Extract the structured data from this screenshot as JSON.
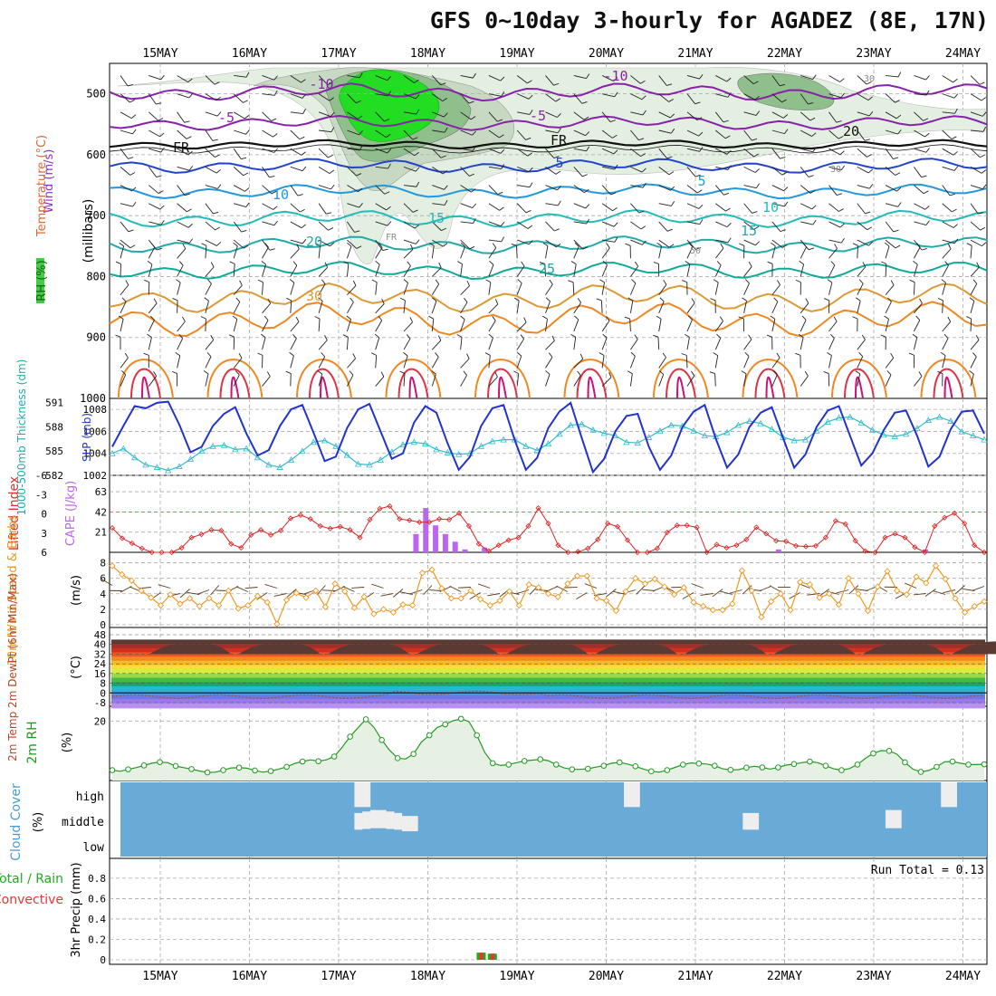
{
  "title": "GFS 0~10day 3-hourly for AGADEZ (8E, 17N)",
  "colors": {
    "frame": "#000000",
    "grid": "#aaaaaa",
    "rh_green1": "#e3efe0",
    "rh_green2": "#c7d8c3",
    "rh_green3": "#8fbf8a",
    "rh_green4": "#22dd22",
    "slp": "#2233cc",
    "thickness": "#33bbcc",
    "lifted_index": "#dd2222",
    "cape": "#bb66ee",
    "wind10": "#ee9922",
    "cloud": "#6aaad6",
    "rh2m": "#229922",
    "precip_total": "#22aa22",
    "precip_conv": "#ee3333"
  },
  "x_axis": {
    "dates": [
      "15MAY",
      "16MAY",
      "17MAY",
      "18MAY",
      "19MAY",
      "20MAY",
      "21MAY",
      "22MAY",
      "23MAY",
      "24MAY"
    ]
  },
  "panels": {
    "upper_air": {
      "ylabel_wind": "Wind (m/s)",
      "ylabel_temp": "Temperature (°C)",
      "ylabel_units": "(millibars)",
      "ylabel_rh": "RH (%)",
      "pressure_ticks": [
        "500",
        "600",
        "700",
        "800",
        "900",
        "1000"
      ],
      "contour_labels": [
        "-10",
        "-5",
        "FR",
        "5",
        "10",
        "15",
        "20",
        "25",
        "30",
        "-10",
        "-5",
        "FR",
        "5",
        "10",
        "15",
        "20",
        "FR",
        "30",
        "30",
        "50",
        "10"
      ]
    },
    "slp_thickness": {
      "ylabel_thk": "1000-500mb Thickness (dm)",
      "ylabel_slp": "SLP (mb)",
      "left_ticks": [
        "591",
        "588",
        "585",
        "582"
      ],
      "right_ticks": [
        "1008",
        "1006",
        "1004",
        "1002"
      ]
    },
    "instability": {
      "ylabel_li": "Lifted Index",
      "ylabel_cape": "CAPE (J/kg)",
      "left_ticks": [
        "-6",
        "-3",
        "0",
        "3",
        "6"
      ],
      "right_ticks": [
        "63",
        "42",
        "21"
      ]
    },
    "wind10m": {
      "ylabel": "10m Wind Speed & Barbs",
      "ylabel_units": "(m/s)",
      "ticks": [
        "8",
        "6",
        "4",
        "2",
        "0"
      ]
    },
    "temp2m": {
      "ylabel": "2m Temp 2m DewPt (6hr Min/Max)",
      "ylabel_units": "(°C)",
      "ticks": [
        "48",
        "40",
        "32",
        "24",
        "16",
        "8",
        "0",
        "-8"
      ]
    },
    "rh2m": {
      "ylabel": "2m RH",
      "ylabel_units": "(%)",
      "ticks": [
        "20"
      ]
    },
    "cloud": {
      "ylabel": "Cloud Cover",
      "ylabel_units": "(%)",
      "levels": [
        "high",
        "middle",
        "low"
      ]
    },
    "precip": {
      "ylabel_a": "Total / Rain",
      "ylabel_b": "Convective",
      "ylabel_units": "3hr Precip (mm)",
      "ticks": [
        "0.8",
        "0.6",
        "0.4",
        "0.2",
        "0"
      ],
      "run_total": "Run Total = 0.13"
    }
  },
  "chart_data": [
    {
      "type": "line",
      "title": "SLP (mb)",
      "x_unit": "3-hourly steps from 14MAY 12Z",
      "ylim": [
        1002,
        1009
      ],
      "series": [
        {
          "name": "SLP (mb)",
          "values": [
            1004.6,
            1006.5,
            1008.3,
            1008.1,
            1008.6,
            1008.7,
            1006.6,
            1004.1,
            1004.6,
            1006.5,
            1007.6,
            1008.2,
            1005.8,
            1003.8,
            1004.3,
            1006.5,
            1008.0,
            1008.4,
            1005.9,
            1003.3,
            1003.7,
            1006.3,
            1008.0,
            1008.5,
            1006.0,
            1003.5,
            1004.0,
            1006.8,
            1008.3,
            1007.7,
            1004.9,
            1002.5,
            1003.7,
            1006.5,
            1008.1,
            1008.4,
            1005.2,
            1002.5,
            1003.6,
            1006.3,
            1007.8,
            1008.6,
            1005.4,
            1002.3,
            1003.5,
            1006.0,
            1007.4,
            1007.6,
            1004.6,
            1002.5,
            1003.8,
            1006.4,
            1007.8,
            1008.4,
            1005.3,
            1002.7,
            1003.9,
            1006.4,
            1007.7,
            1008.2,
            1005.4,
            1002.7,
            1003.9,
            1006.4,
            1007.9,
            1008.3,
            1005.6,
            1002.9,
            1004.0,
            1006.1,
            1007.7,
            1007.9,
            1005.6,
            1002.8,
            1003.7,
            1006.2,
            1007.8,
            1007.9,
            1005.8
          ]
        }
      ]
    },
    {
      "type": "line",
      "title": "1000-500mb Thickness (dm)",
      "ylim": [
        582,
        591.5
      ],
      "series": [
        {
          "name": "1000-500mb Thickness (dm)",
          "values": [
            584.7,
            585.3,
            584.2,
            583.3,
            583.0,
            582.6,
            583.1,
            584.0,
            585.0,
            585.6,
            585.7,
            585.2,
            585.3,
            584.2,
            583.3,
            583.0,
            583.9,
            585.0,
            586.1,
            586.3,
            585.6,
            584.5,
            583.4,
            583.3,
            583.9,
            584.9,
            585.8,
            586.1,
            585.9,
            585.2,
            584.8,
            584.6,
            584.7,
            585.6,
            586.2,
            586.4,
            586.4,
            585.6,
            585.1,
            585.9,
            587.1,
            588.2,
            588.3,
            587.6,
            587.2,
            586.9,
            586.1,
            586.0,
            586.7,
            587.5,
            588.2,
            588.1,
            587.5,
            586.9,
            586.8,
            587.3,
            588.2,
            588.7,
            588.4,
            587.7,
            586.7,
            586.3,
            586.4,
            587.5,
            588.6,
            589.1,
            589.2,
            588.5,
            587.6,
            587.0,
            586.8,
            587.1,
            587.8,
            588.8,
            589.2,
            588.7,
            587.4,
            586.9,
            586.4
          ]
        }
      ]
    },
    {
      "type": "line",
      "title": "Lifted Index",
      "ylim": [
        6,
        -6
      ],
      "series": [
        {
          "name": "Lifted Index",
          "values": [
            2.2,
            3.8,
            4.6,
            5.4,
            6.2,
            6.4,
            6.1,
            5.3,
            3.7,
            3.2,
            2.5,
            2.6,
            4.7,
            5.3,
            3.3,
            2.5,
            3.3,
            2.6,
            0.7,
            0.2,
            0.8,
            1.9,
            2.3,
            2.0,
            2.5,
            3.7,
            0.9,
            -0.8,
            -1.2,
            0.8,
            1.0,
            1.3,
            1.3,
            0.8,
            0.9,
            -0.1,
            1.9,
            4.7,
            5.8,
            4.9,
            4.1,
            3.7,
            1.9,
            -0.9,
            1.5,
            4.9,
            6.2,
            5.9,
            5.4,
            4.0,
            1.5,
            2.0,
            4.1,
            6.3,
            6.1,
            5.4,
            2.9,
            1.8,
            1.8,
            2.1,
            6.1,
            4.8,
            5.3,
            4.9,
            4.0,
            2.1,
            3.1,
            4.2,
            4.3,
            5.0,
            5.1,
            5.0,
            3.7,
            1.1,
            1.6,
            4.2,
            5.8,
            6.0,
            3.7,
            3.1,
            3.7,
            5.2,
            6.2,
            1.9,
            0.6,
            -0.1,
            1.5,
            4.9,
            6.0
          ]
        }
      ]
    },
    {
      "type": "bar",
      "title": "CAPE (J/kg)",
      "ylim": [
        0,
        80
      ],
      "series": [
        {
          "name": "CAPE (J/kg)",
          "values": [
            0,
            0,
            0,
            0,
            0,
            0,
            0,
            0,
            0,
            0,
            0,
            0,
            0,
            0,
            0,
            0,
            0,
            0,
            0,
            0,
            0,
            0,
            0,
            0,
            0,
            0,
            0,
            0,
            0,
            0,
            0,
            19,
            46,
            28,
            19,
            11,
            3,
            0,
            5,
            0,
            0,
            0,
            0,
            0,
            0,
            0,
            0,
            0,
            0,
            0,
            0,
            0,
            0,
            0,
            0,
            0,
            0,
            0,
            0,
            0,
            0,
            0,
            0,
            0,
            0,
            0,
            0,
            0,
            3,
            0,
            0,
            0,
            0,
            0,
            0,
            0,
            0,
            0,
            0,
            0,
            0,
            0,
            0,
            3,
            0,
            0,
            0,
            0,
            0,
            0
          ]
        }
      ]
    },
    {
      "type": "line",
      "title": "10m Wind Speed (m/s)",
      "ylim": [
        0,
        9
      ],
      "series": [
        {
          "name": "10m Wind Speed (m/s)",
          "values": [
            7.6,
            6.5,
            5.7,
            4.4,
            3.5,
            2.5,
            3.9,
            2.7,
            3.4,
            2.4,
            3.4,
            2.5,
            4.4,
            2.1,
            2.5,
            3.7,
            2.9,
            0.1,
            3.2,
            4.1,
            3.5,
            4.4,
            2.3,
            5.3,
            4.3,
            2.2,
            3.6,
            1.4,
            2.0,
            1.6,
            2.6,
            2.5,
            6.7,
            7.1,
            4.7,
            3.4,
            3.4,
            4.4,
            3.3,
            2.5,
            3.1,
            4.3,
            2.5,
            5.2,
            4.8,
            4.0,
            3.6,
            5.3,
            6.3,
            6.3,
            3.4,
            3.1,
            1.8,
            4.3,
            6.0,
            5.3,
            5.9,
            4.9,
            3.9,
            4.8,
            2.9,
            2.4,
            1.9,
            1.9,
            2.7,
            7.0,
            4.4,
            1.0,
            3.0,
            4.0,
            1.9,
            5.5,
            5.2,
            3.5,
            4.0,
            2.6,
            6.0,
            4.0,
            1.8,
            4.9,
            6.9,
            4.4,
            3.9,
            6.2,
            5.4,
            7.6,
            5.9,
            3.4,
            1.6,
            2.4,
            3.0
          ]
        }
      ]
    },
    {
      "type": "area",
      "title": "2m RH (%)",
      "ylim": [
        0,
        24
      ],
      "series": [
        {
          "name": "2m RH (%)",
          "values": [
            2.4,
            2.0,
            2.7,
            3.3,
            4.1,
            4.9,
            5.3,
            5.1,
            3.9,
            3.3,
            2.8,
            2.1,
            1.6,
            1.7,
            2.4,
            3.2,
            3.3,
            3.1,
            2.3,
            1.7,
            2.1,
            2.8,
            3.6,
            4.8,
            5.5,
            6.1,
            5.6,
            6.1,
            7.3,
            10.6,
            14.4,
            17.6,
            20.6,
            17.8,
            13.2,
            9.5,
            6.7,
            6.4,
            8.2,
            12.5,
            14.9,
            17.7,
            18.8,
            20.1,
            20.8,
            19.8,
            14.9,
            8.7,
            4.9,
            4.1,
            4.4,
            5.1,
            5.7,
            6.0,
            6.3,
            5.8,
            4.4,
            3.2,
            2.7,
            2.7,
            2.9,
            3.5,
            4.0,
            4.9,
            5.2,
            4.6,
            3.8,
            2.8,
            2.0,
            1.7,
            2.4,
            3.4,
            4.4,
            5.0,
            4.8,
            4.6,
            4.0,
            2.9,
            2.5,
            2.6,
            3.3,
            3.8,
            3.4,
            2.8,
            3.4,
            4.2,
            4.6,
            5.1,
            5.5,
            5.1,
            4.0,
            2.9,
            2.4,
            3.0,
            4.4,
            6.6,
            8.4,
            9.4,
            9.3,
            8.1,
            5.2,
            2.8,
            1.8,
            2.3,
            3.6,
            5.4,
            5.5,
            4.9,
            4.4,
            4.4,
            4.5
          ]
        }
      ]
    },
    {
      "type": "heatmap",
      "title": "Cloud Cover (%)",
      "y_categories": [
        "high",
        "middle",
        "low"
      ],
      "values_high": [
        0,
        0,
        0,
        0,
        0,
        0,
        0,
        0,
        0,
        0,
        0,
        0,
        0,
        0,
        0,
        0,
        0,
        0,
        0,
        0,
        0,
        0,
        0,
        0,
        0,
        0,
        0,
        0,
        0,
        0,
        0,
        100,
        100,
        0,
        0,
        0,
        0,
        0,
        0,
        0,
        0,
        0,
        0,
        0,
        0,
        0,
        0,
        0,
        0,
        0,
        0,
        0,
        0,
        0,
        0,
        0,
        0,
        0,
        0,
        0,
        0,
        0,
        0,
        0,
        0,
        100,
        100,
        0,
        0,
        0,
        0,
        0,
        0,
        0,
        0,
        0,
        0,
        0,
        0,
        0,
        0,
        0,
        0,
        0,
        0,
        0,
        0,
        0,
        0,
        0,
        0,
        0,
        0,
        0,
        0,
        0,
        0,
        0,
        0,
        0,
        0,
        0,
        0,
        0,
        0,
        100,
        100,
        0,
        0,
        0,
        0
      ],
      "values_middle": [
        0,
        0,
        0,
        0,
        0,
        0,
        0,
        0,
        0,
        0,
        0,
        0,
        0,
        0,
        0,
        0,
        0,
        0,
        0,
        0,
        0,
        0,
        0,
        0,
        0,
        0,
        0,
        0,
        0,
        0,
        0,
        60,
        70,
        80,
        80,
        70,
        60,
        40,
        40,
        0,
        0,
        0,
        0,
        0,
        0,
        0,
        0,
        0,
        0,
        0,
        0,
        0,
        0,
        0,
        0,
        0,
        0,
        0,
        0,
        0,
        0,
        0,
        0,
        0,
        0,
        0,
        0,
        0,
        0,
        0,
        0,
        0,
        0,
        0,
        0,
        0,
        0,
        0,
        0,
        0,
        60,
        60,
        0,
        0,
        0,
        0,
        0,
        0,
        0,
        0,
        0,
        0,
        0,
        0,
        0,
        0,
        0,
        0,
        80,
        80,
        0,
        0,
        0,
        0,
        0,
        0,
        0,
        0,
        0,
        0,
        0
      ]
    },
    {
      "type": "bar",
      "title": "3hr Precip (mm)",
      "ylim": [
        0,
        0.95
      ],
      "series": [
        {
          "name": "Total / Rain",
          "values": [
            0,
            0,
            0,
            0,
            0,
            0,
            0,
            0,
            0,
            0,
            0,
            0,
            0,
            0,
            0,
            0,
            0,
            0,
            0,
            0,
            0,
            0,
            0,
            0,
            0,
            0,
            0,
            0,
            0,
            0,
            0,
            0,
            0,
            0.07,
            0.06,
            0,
            0,
            0,
            0,
            0,
            0,
            0,
            0,
            0,
            0,
            0,
            0,
            0,
            0,
            0,
            0,
            0,
            0,
            0,
            0,
            0,
            0,
            0,
            0,
            0,
            0,
            0,
            0,
            0,
            0,
            0,
            0,
            0,
            0,
            0,
            0,
            0,
            0,
            0,
            0,
            0,
            0,
            0,
            0
          ]
        },
        {
          "name": "Convective",
          "values": [
            0,
            0,
            0,
            0,
            0,
            0,
            0,
            0,
            0,
            0,
            0,
            0,
            0,
            0,
            0,
            0,
            0,
            0,
            0,
            0,
            0,
            0,
            0,
            0,
            0,
            0,
            0,
            0,
            0,
            0,
            0,
            0,
            0,
            0.07,
            0.06,
            0,
            0,
            0,
            0,
            0,
            0,
            0,
            0,
            0,
            0,
            0,
            0,
            0,
            0,
            0,
            0,
            0,
            0,
            0,
            0,
            0,
            0,
            0,
            0,
            0,
            0,
            0,
            0,
            0,
            0,
            0,
            0,
            0,
            0,
            0,
            0,
            0,
            0,
            0,
            0,
            0,
            0,
            0,
            0
          ]
        }
      ]
    }
  ]
}
